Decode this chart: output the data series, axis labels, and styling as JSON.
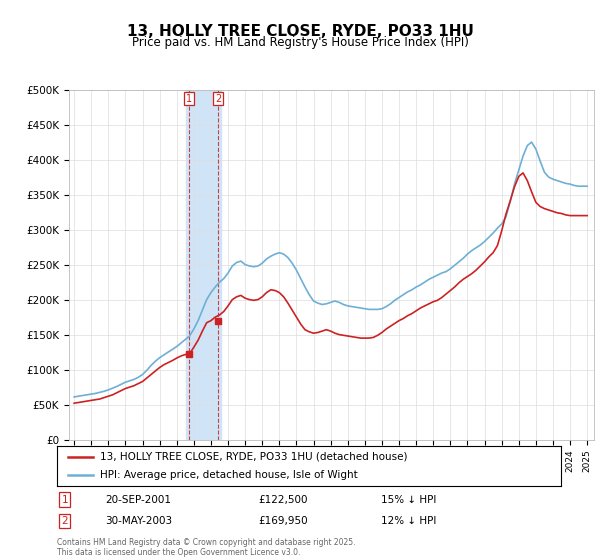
{
  "title": "13, HOLLY TREE CLOSE, RYDE, PO33 1HU",
  "subtitle": "Price paid vs. HM Land Registry's House Price Index (HPI)",
  "hpi_label": "HPI: Average price, detached house, Isle of Wight",
  "property_label": "13, HOLLY TREE CLOSE, RYDE, PO33 1HU (detached house)",
  "hpi_color": "#6dafd6",
  "property_color": "#cc2222",
  "highlight_color": "#d0e4f7",
  "background_color": "#ffffff",
  "grid_color": "#dddddd",
  "ylim": [
    0,
    500000
  ],
  "yticks": [
    0,
    50000,
    100000,
    150000,
    200000,
    250000,
    300000,
    350000,
    400000,
    450000,
    500000
  ],
  "ytick_labels": [
    "£0",
    "£50K",
    "£100K",
    "£150K",
    "£200K",
    "£250K",
    "£300K",
    "£350K",
    "£400K",
    "£450K",
    "£500K"
  ],
  "transactions": [
    {
      "label": "1",
      "date": "20-SEP-2001",
      "price": 122500,
      "hpi_diff": "15% ↓ HPI",
      "x_year": 2001.72
    },
    {
      "label": "2",
      "date": "30-MAY-2003",
      "price": 169950,
      "hpi_diff": "12% ↓ HPI",
      "x_year": 2003.41
    }
  ],
  "footer": "Contains HM Land Registry data © Crown copyright and database right 2025.\nThis data is licensed under the Open Government Licence v3.0.",
  "hpi_years": [
    1995.0,
    1995.25,
    1995.5,
    1995.75,
    1996.0,
    1996.25,
    1996.5,
    1996.75,
    1997.0,
    1997.25,
    1997.5,
    1997.75,
    1998.0,
    1998.25,
    1998.5,
    1998.75,
    1999.0,
    1999.25,
    1999.5,
    1999.75,
    2000.0,
    2000.25,
    2000.5,
    2000.75,
    2001.0,
    2001.25,
    2001.5,
    2001.75,
    2002.0,
    2002.25,
    2002.5,
    2002.75,
    2003.0,
    2003.25,
    2003.5,
    2003.75,
    2004.0,
    2004.25,
    2004.5,
    2004.75,
    2005.0,
    2005.25,
    2005.5,
    2005.75,
    2006.0,
    2006.25,
    2006.5,
    2006.75,
    2007.0,
    2007.25,
    2007.5,
    2007.75,
    2008.0,
    2008.25,
    2008.5,
    2008.75,
    2009.0,
    2009.25,
    2009.5,
    2009.75,
    2010.0,
    2010.25,
    2010.5,
    2010.75,
    2011.0,
    2011.25,
    2011.5,
    2011.75,
    2012.0,
    2012.25,
    2012.5,
    2012.75,
    2013.0,
    2013.25,
    2013.5,
    2013.75,
    2014.0,
    2014.25,
    2014.5,
    2014.75,
    2015.0,
    2015.25,
    2015.5,
    2015.75,
    2016.0,
    2016.25,
    2016.5,
    2016.75,
    2017.0,
    2017.25,
    2017.5,
    2017.75,
    2018.0,
    2018.25,
    2018.5,
    2018.75,
    2019.0,
    2019.25,
    2019.5,
    2019.75,
    2020.0,
    2020.25,
    2020.5,
    2020.75,
    2021.0,
    2021.25,
    2021.5,
    2021.75,
    2022.0,
    2022.25,
    2022.5,
    2022.75,
    2023.0,
    2023.25,
    2023.5,
    2023.75,
    2024.0,
    2024.25,
    2024.5,
    2024.75,
    2025.0
  ],
  "hpi_values": [
    61000,
    62000,
    63000,
    64000,
    65000,
    66000,
    67500,
    69000,
    71000,
    73500,
    76000,
    79000,
    82000,
    84000,
    86000,
    89000,
    93000,
    99000,
    106000,
    112000,
    117000,
    121000,
    125000,
    129000,
    133000,
    138000,
    143000,
    148000,
    158000,
    170000,
    185000,
    200000,
    210000,
    218000,
    225000,
    230000,
    238000,
    248000,
    253000,
    255000,
    250000,
    248000,
    247000,
    248000,
    252000,
    258000,
    262000,
    265000,
    267000,
    265000,
    260000,
    252000,
    242000,
    230000,
    218000,
    207000,
    198000,
    195000,
    193000,
    194000,
    196000,
    198000,
    196000,
    193000,
    191000,
    190000,
    189000,
    188000,
    187000,
    186000,
    186000,
    186000,
    187000,
    190000,
    194000,
    199000,
    203000,
    207000,
    211000,
    214000,
    218000,
    221000,
    225000,
    229000,
    232000,
    235000,
    238000,
    240000,
    244000,
    249000,
    254000,
    259000,
    265000,
    270000,
    274000,
    278000,
    283000,
    289000,
    295000,
    302000,
    308000,
    318000,
    340000,
    365000,
    385000,
    405000,
    420000,
    425000,
    415000,
    398000,
    382000,
    375000,
    372000,
    370000,
    368000,
    366000,
    365000,
    363000,
    362000,
    362000,
    362000
  ],
  "property_years": [
    1995.0,
    1995.25,
    1995.5,
    1995.75,
    1996.0,
    1996.25,
    1996.5,
    1996.75,
    1997.0,
    1997.25,
    1997.5,
    1997.75,
    1998.0,
    1998.25,
    1998.5,
    1998.75,
    1999.0,
    1999.25,
    1999.5,
    1999.75,
    2000.0,
    2000.25,
    2000.5,
    2000.75,
    2001.0,
    2001.25,
    2001.5,
    2001.75,
    2002.0,
    2002.25,
    2002.5,
    2002.75,
    2003.0,
    2003.25,
    2003.5,
    2003.75,
    2004.0,
    2004.25,
    2004.5,
    2004.75,
    2005.0,
    2005.25,
    2005.5,
    2005.75,
    2006.0,
    2006.25,
    2006.5,
    2006.75,
    2007.0,
    2007.25,
    2007.5,
    2007.75,
    2008.0,
    2008.25,
    2008.5,
    2008.75,
    2009.0,
    2009.25,
    2009.5,
    2009.75,
    2010.0,
    2010.25,
    2010.5,
    2010.75,
    2011.0,
    2011.25,
    2011.5,
    2011.75,
    2012.0,
    2012.25,
    2012.5,
    2012.75,
    2013.0,
    2013.25,
    2013.5,
    2013.75,
    2014.0,
    2014.25,
    2014.5,
    2014.75,
    2015.0,
    2015.25,
    2015.5,
    2015.75,
    2016.0,
    2016.25,
    2016.5,
    2016.75,
    2017.0,
    2017.25,
    2017.5,
    2017.75,
    2018.0,
    2018.25,
    2018.5,
    2018.75,
    2019.0,
    2019.25,
    2019.5,
    2019.75,
    2020.0,
    2020.25,
    2020.5,
    2020.75,
    2021.0,
    2021.25,
    2021.5,
    2021.75,
    2022.0,
    2022.25,
    2022.5,
    2022.75,
    2023.0,
    2023.25,
    2023.5,
    2023.75,
    2024.0,
    2024.25,
    2024.5,
    2024.75,
    2025.0
  ],
  "property_values": [
    52000,
    53000,
    54000,
    55000,
    56000,
    57000,
    58000,
    60000,
    62000,
    64000,
    67000,
    70000,
    73000,
    75000,
    77000,
    80000,
    83000,
    88000,
    93000,
    98000,
    103000,
    107000,
    110000,
    113000,
    116500,
    119500,
    121500,
    122500,
    132000,
    142000,
    155000,
    167000,
    169950,
    175000,
    178000,
    183000,
    191000,
    200000,
    204000,
    206000,
    202000,
    200000,
    199000,
    200000,
    204000,
    210000,
    214000,
    213000,
    210000,
    204000,
    195000,
    185000,
    175000,
    165000,
    157000,
    154000,
    152000,
    153000,
    155000,
    157000,
    155000,
    152000,
    150000,
    149000,
    148000,
    147000,
    146000,
    145000,
    145000,
    145000,
    146000,
    149000,
    153000,
    158000,
    162000,
    166000,
    170000,
    173000,
    177000,
    180000,
    184000,
    188000,
    191000,
    194000,
    197000,
    199000,
    203000,
    208000,
    213000,
    218000,
    224000,
    229000,
    233000,
    237000,
    242000,
    248000,
    254000,
    261000,
    267000,
    277000,
    298000,
    322000,
    341000,
    361000,
    376000,
    381000,
    370000,
    354000,
    339000,
    333000,
    330000,
    328000,
    326000,
    324000,
    323000,
    321000,
    320000,
    320000,
    320000,
    320000,
    320000
  ],
  "xtick_years": [
    1995,
    1996,
    1997,
    1998,
    1999,
    2000,
    2001,
    2002,
    2003,
    2004,
    2005,
    2006,
    2007,
    2008,
    2009,
    2010,
    2011,
    2012,
    2013,
    2014,
    2015,
    2016,
    2017,
    2018,
    2019,
    2020,
    2021,
    2022,
    2023,
    2024,
    2025
  ],
  "highlight_x_start": 2001.55,
  "highlight_x_end": 2003.6,
  "highlight_dashed_x1": 2001.72,
  "highlight_dashed_x2": 2003.41
}
